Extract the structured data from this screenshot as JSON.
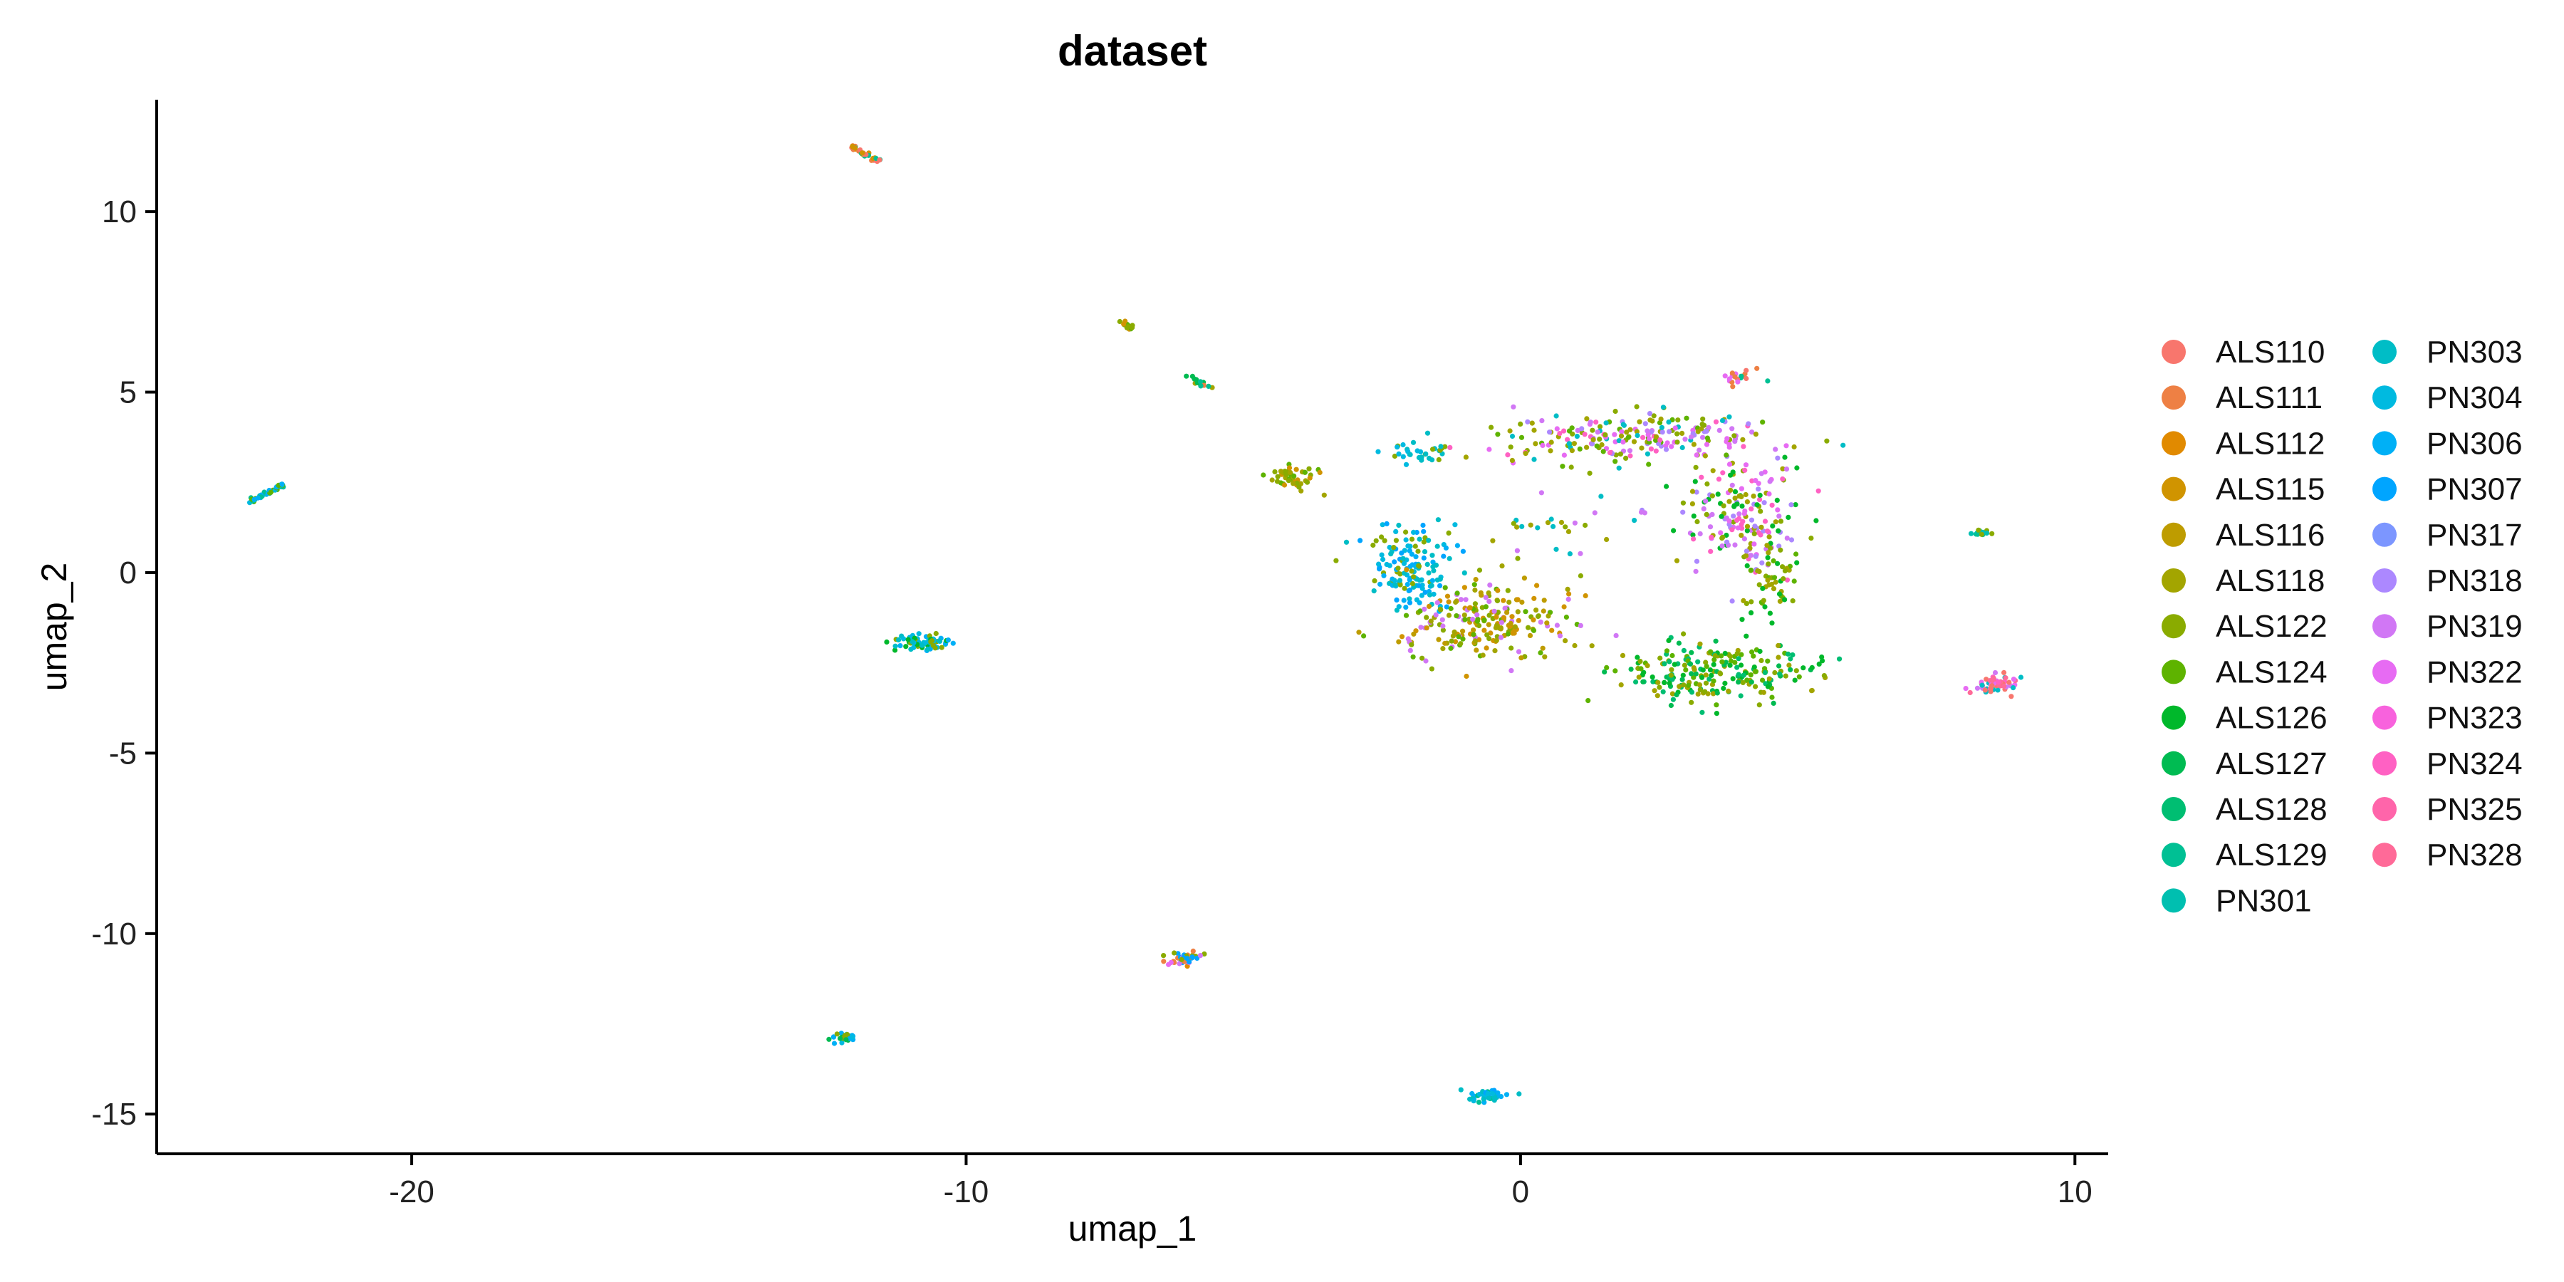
{
  "chart_data": {
    "type": "scatter",
    "title": "dataset",
    "xlabel": "umap_1",
    "ylabel": "umap_2",
    "xlim": [
      -24.6,
      10.6
    ],
    "ylim": [
      -16.1,
      13.1
    ],
    "x_ticks": [
      -20,
      -10,
      0,
      10
    ],
    "y_ticks": [
      -15,
      -10,
      -5,
      0,
      5,
      10
    ],
    "x_tick_labels": [
      "-20",
      "-10",
      "0",
      "10"
    ],
    "y_tick_labels": [
      "-15",
      "-10",
      "-5",
      "0",
      "5",
      "10"
    ],
    "grid": false,
    "legend_position": "right",
    "legend_columns": 2,
    "series": [
      {
        "name": "ALS110",
        "color": "#F8766D"
      },
      {
        "name": "ALS111",
        "color": "#EE8044"
      },
      {
        "name": "ALS112",
        "color": "#E18A00"
      },
      {
        "name": "ALS115",
        "color": "#D09400"
      },
      {
        "name": "ALS116",
        "color": "#BE9C00"
      },
      {
        "name": "ALS118",
        "color": "#A3A500"
      },
      {
        "name": "ALS122",
        "color": "#8AAB00"
      },
      {
        "name": "ALS124",
        "color": "#5EB300"
      },
      {
        "name": "ALS126",
        "color": "#00B82B"
      },
      {
        "name": "ALS127",
        "color": "#00BB52"
      },
      {
        "name": "ALS128",
        "color": "#00BE72"
      },
      {
        "name": "ALS129",
        "color": "#00C094"
      },
      {
        "name": "PN301",
        "color": "#00BFB0"
      },
      {
        "name": "PN303",
        "color": "#00BDC6"
      },
      {
        "name": "PN304",
        "color": "#00BAE0"
      },
      {
        "name": "PN306",
        "color": "#00B0F6"
      },
      {
        "name": "PN307",
        "color": "#00A5FF"
      },
      {
        "name": "PN317",
        "color": "#7C96FF"
      },
      {
        "name": "PN318",
        "color": "#AC88FF"
      },
      {
        "name": "PN319",
        "color": "#D177F5"
      },
      {
        "name": "PN322",
        "color": "#E76BF3"
      },
      {
        "name": "PN323",
        "color": "#F862DD"
      },
      {
        "name": "PN324",
        "color": "#FF61C3"
      },
      {
        "name": "PN325",
        "color": "#FF65AA"
      },
      {
        "name": "PN328",
        "color": "#FF6A98"
      }
    ],
    "clusters": [
      {
        "shape": "line",
        "x0": -22.9,
        "y0": 1.95,
        "x1": -22.3,
        "y1": 2.45,
        "n": 40,
        "colors": [
          11,
          12,
          14,
          15,
          7
        ]
      },
      {
        "shape": "line",
        "x0": -12.1,
        "y0": 11.85,
        "x1": -11.6,
        "y1": 11.4,
        "n": 35,
        "colors": [
          0,
          1,
          3,
          11,
          12
        ]
      },
      {
        "shape": "line",
        "x0": -7.2,
        "y0": 6.95,
        "x1": -7.0,
        "y1": 6.75,
        "n": 14,
        "colors": [
          6,
          7,
          3
        ]
      },
      {
        "shape": "line",
        "x0": -6.0,
        "y0": 5.45,
        "x1": -5.6,
        "y1": 5.05,
        "n": 16,
        "colors": [
          1,
          5,
          9,
          11
        ]
      },
      {
        "shape": "blob",
        "cx": -4.1,
        "cy": 2.6,
        "rx": 0.35,
        "ry": 0.3,
        "n": 45,
        "colors": [
          5,
          6,
          7,
          3
        ]
      },
      {
        "shape": "blob",
        "cx": -10.8,
        "cy": -1.95,
        "rx": 0.4,
        "ry": 0.22,
        "n": 70,
        "colors": [
          14,
          15,
          13,
          8,
          6
        ]
      },
      {
        "shape": "blob",
        "cx": -12.2,
        "cy": -12.9,
        "rx": 0.25,
        "ry": 0.12,
        "n": 28,
        "colors": [
          14,
          15,
          6,
          9
        ]
      },
      {
        "shape": "blob",
        "cx": -6.05,
        "cy": -10.7,
        "rx": 0.3,
        "ry": 0.2,
        "n": 35,
        "colors": [
          19,
          20,
          2,
          1,
          16,
          6
        ]
      },
      {
        "shape": "blob",
        "cx": -0.6,
        "cy": -14.5,
        "rx": 0.35,
        "ry": 0.16,
        "n": 45,
        "colors": [
          14,
          15,
          16,
          13,
          11
        ]
      },
      {
        "shape": "blob",
        "cx": 3.9,
        "cy": 5.4,
        "rx": 0.25,
        "ry": 0.2,
        "n": 20,
        "colors": [
          0,
          20,
          1,
          11
        ]
      },
      {
        "shape": "blob",
        "cx": 8.3,
        "cy": 1.1,
        "rx": 0.2,
        "ry": 0.08,
        "n": 14,
        "colors": [
          11,
          6,
          12
        ]
      },
      {
        "shape": "blob",
        "cx": 8.55,
        "cy": -3.1,
        "rx": 0.35,
        "ry": 0.25,
        "n": 55,
        "colors": [
          20,
          22,
          13,
          19,
          0,
          24
        ]
      },
      {
        "shape": "blob",
        "cx": -1.9,
        "cy": 3.3,
        "rx": 0.5,
        "ry": 0.25,
        "n": 30,
        "colors": [
          13,
          14,
          6
        ]
      },
      {
        "shape": "blob",
        "cx": 1.8,
        "cy": 3.8,
        "rx": 2.4,
        "ry": 0.65,
        "n": 220,
        "colors": [
          5,
          6,
          19,
          20,
          22,
          18,
          7,
          13
        ]
      },
      {
        "shape": "blob",
        "cx": 4.0,
        "cy": 1.7,
        "rx": 1.05,
        "ry": 1.45,
        "n": 190,
        "colors": [
          19,
          20,
          22,
          5,
          6,
          8,
          18
        ]
      },
      {
        "shape": "blob",
        "cx": -2.0,
        "cy": 0.1,
        "rx": 0.75,
        "ry": 1.05,
        "n": 150,
        "colors": [
          14,
          15,
          13,
          16,
          6
        ]
      },
      {
        "shape": "blob",
        "cx": -0.6,
        "cy": -1.3,
        "rx": 1.45,
        "ry": 0.95,
        "n": 230,
        "colors": [
          5,
          6,
          3,
          4,
          7,
          19
        ]
      },
      {
        "shape": "blob",
        "cx": 3.6,
        "cy": -2.8,
        "rx": 1.5,
        "ry": 0.75,
        "n": 230,
        "colors": [
          7,
          8,
          9,
          10,
          6,
          5
        ]
      },
      {
        "shape": "blob",
        "cx": 4.55,
        "cy": -0.4,
        "rx": 0.45,
        "ry": 1.0,
        "n": 50,
        "colors": [
          7,
          8,
          5,
          6
        ]
      },
      {
        "shape": "blob",
        "cx": 0.7,
        "cy": 1.1,
        "rx": 1.6,
        "ry": 0.9,
        "n": 28,
        "colors": [
          5,
          6,
          19,
          13
        ]
      }
    ]
  }
}
